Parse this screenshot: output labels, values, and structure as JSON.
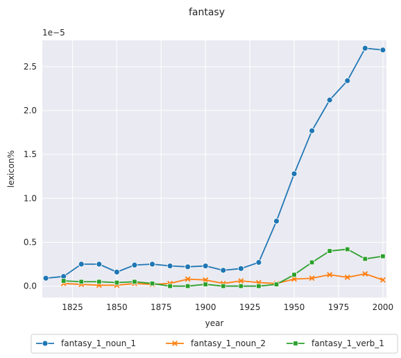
{
  "chart_data": {
    "type": "line",
    "title": "fantasy",
    "xlabel": "year",
    "ylabel": "lexicon%",
    "y_scale_label": "1e−5",
    "xlim": [
      1808,
      2002
    ],
    "ylim": [
      -0.13,
      2.8
    ],
    "x_ticks": [
      1825,
      1850,
      1875,
      1900,
      1925,
      1950,
      1975,
      2000
    ],
    "x_tick_labels": [
      "1825",
      "1850",
      "1875",
      "1900",
      "1925",
      "1950",
      "1975",
      "2000"
    ],
    "y_ticks": [
      0.0,
      0.5,
      1.0,
      1.5,
      2.0,
      2.5
    ],
    "y_tick_labels": [
      "0.0",
      "0.5",
      "1.0",
      "1.5",
      "2.0",
      "2.5"
    ],
    "grid": true,
    "legend_position": "bottom-center",
    "series": [
      {
        "name": "fantasy_1_noun_1",
        "color": "#1f77b4",
        "marker": "circle",
        "x": [
          1810,
          1820,
          1830,
          1840,
          1850,
          1860,
          1870,
          1880,
          1890,
          1900,
          1910,
          1920,
          1930,
          1940,
          1950,
          1960,
          1970,
          1980,
          1990,
          2000
        ],
        "y": [
          0.09,
          0.11,
          0.25,
          0.25,
          0.16,
          0.24,
          0.25,
          0.23,
          0.22,
          0.23,
          0.18,
          0.2,
          0.27,
          0.74,
          1.28,
          1.77,
          2.12,
          2.34,
          2.71,
          2.69
        ]
      },
      {
        "name": "fantasy_1_noun_2",
        "color": "#ff7f0e",
        "marker": "x",
        "x": [
          1820,
          1830,
          1840,
          1850,
          1860,
          1870,
          1880,
          1890,
          1900,
          1910,
          1920,
          1930,
          1940,
          1950,
          1960,
          1970,
          1980,
          1990,
          2000
        ],
        "y": [
          0.03,
          0.02,
          0.01,
          0.01,
          0.03,
          0.02,
          0.03,
          0.08,
          0.07,
          0.03,
          0.06,
          0.04,
          0.03,
          0.08,
          0.09,
          0.13,
          0.1,
          0.14,
          0.07
        ]
      },
      {
        "name": "fantasy_1_verb_1",
        "color": "#2ca02c",
        "marker": "square",
        "x": [
          1820,
          1830,
          1840,
          1850,
          1860,
          1870,
          1880,
          1890,
          1900,
          1910,
          1920,
          1930,
          1940,
          1950,
          1960,
          1970,
          1980,
          1990,
          2000
        ],
        "y": [
          0.06,
          0.05,
          0.05,
          0.04,
          0.05,
          0.03,
          0.0,
          0.0,
          0.02,
          0.0,
          0.0,
          0.0,
          0.02,
          0.13,
          0.27,
          0.4,
          0.42,
          0.31,
          0.34
        ]
      }
    ]
  }
}
